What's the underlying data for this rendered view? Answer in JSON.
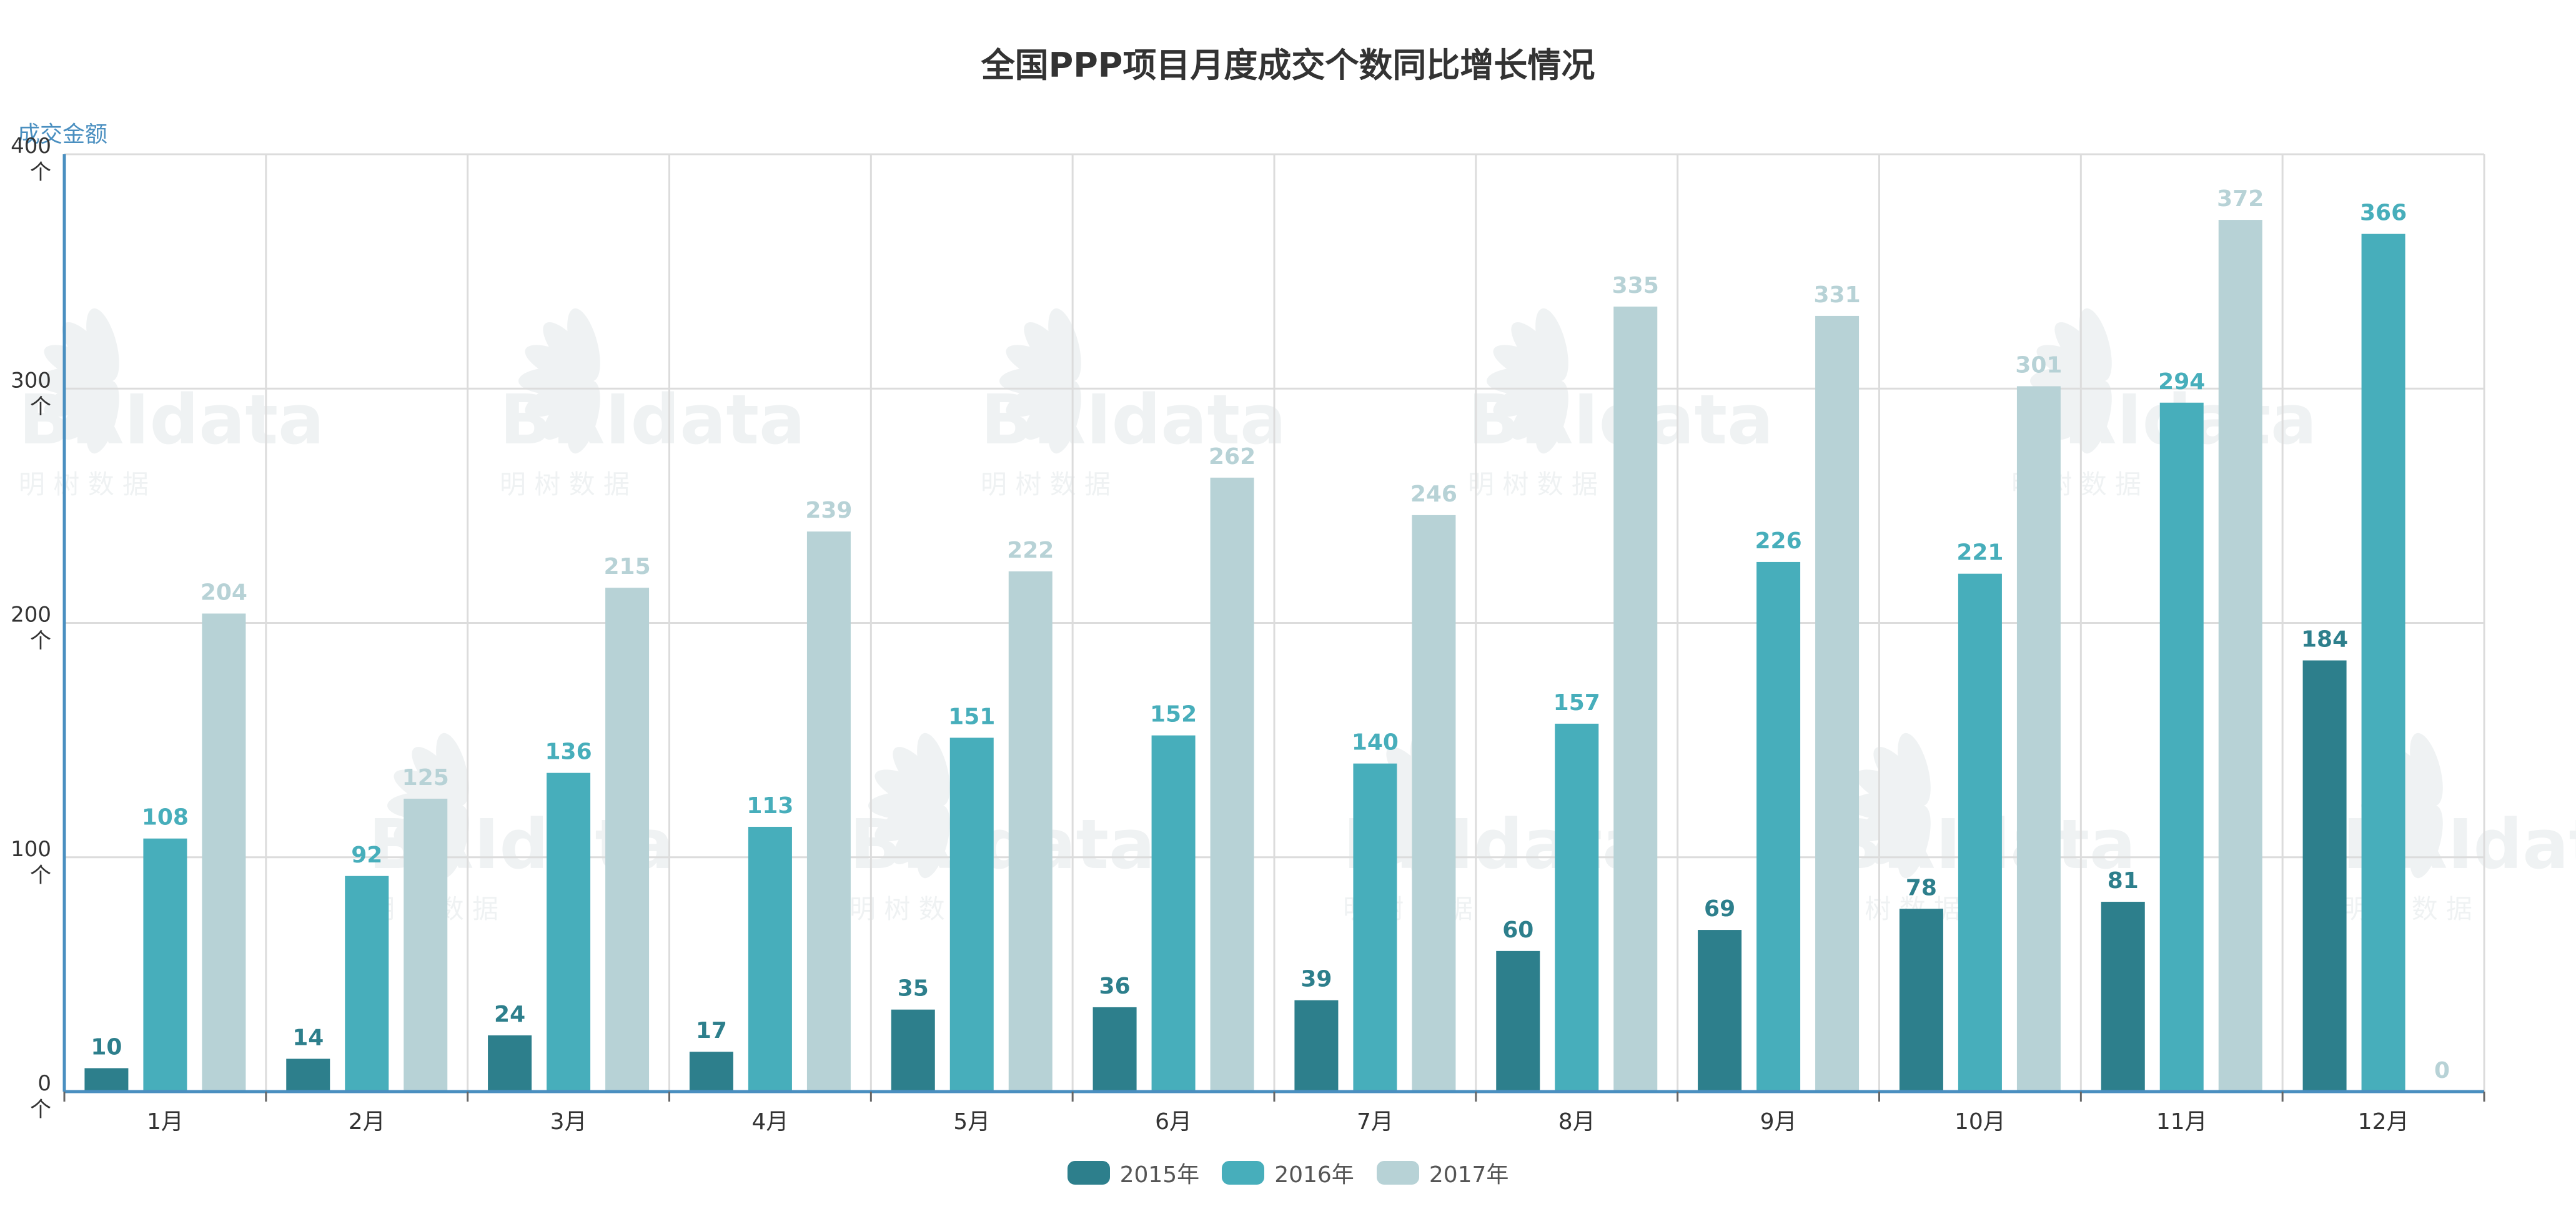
{
  "chart_data": {
    "type": "bar",
    "title": "全国PPP项目月度成交个数同比增长情况",
    "ylabel": "成交金额",
    "y_unit": "个",
    "ylim": [
      0,
      400
    ],
    "y_ticks": [
      0,
      100,
      200,
      300,
      400
    ],
    "grid": true,
    "legend_position": "bottom",
    "categories": [
      "1月",
      "2月",
      "3月",
      "4月",
      "5月",
      "6月",
      "7月",
      "8月",
      "9月",
      "10月",
      "11月",
      "12月"
    ],
    "series": [
      {
        "name": "2015年",
        "color": "#2d7f8c",
        "values": [
          10,
          14,
          24,
          17,
          35,
          36,
          39,
          60,
          69,
          78,
          81,
          184
        ]
      },
      {
        "name": "2016年",
        "color": "#47aebb",
        "values": [
          108,
          92,
          136,
          113,
          151,
          152,
          140,
          157,
          226,
          221,
          294,
          366
        ]
      },
      {
        "name": "2017年",
        "color": "#b7d2d6",
        "values": [
          204,
          125,
          215,
          239,
          222,
          262,
          246,
          335,
          331,
          301,
          372,
          0
        ]
      }
    ]
  },
  "watermark": {
    "brand": "BRIdata",
    "subtitle": "明 树 数 据"
  }
}
